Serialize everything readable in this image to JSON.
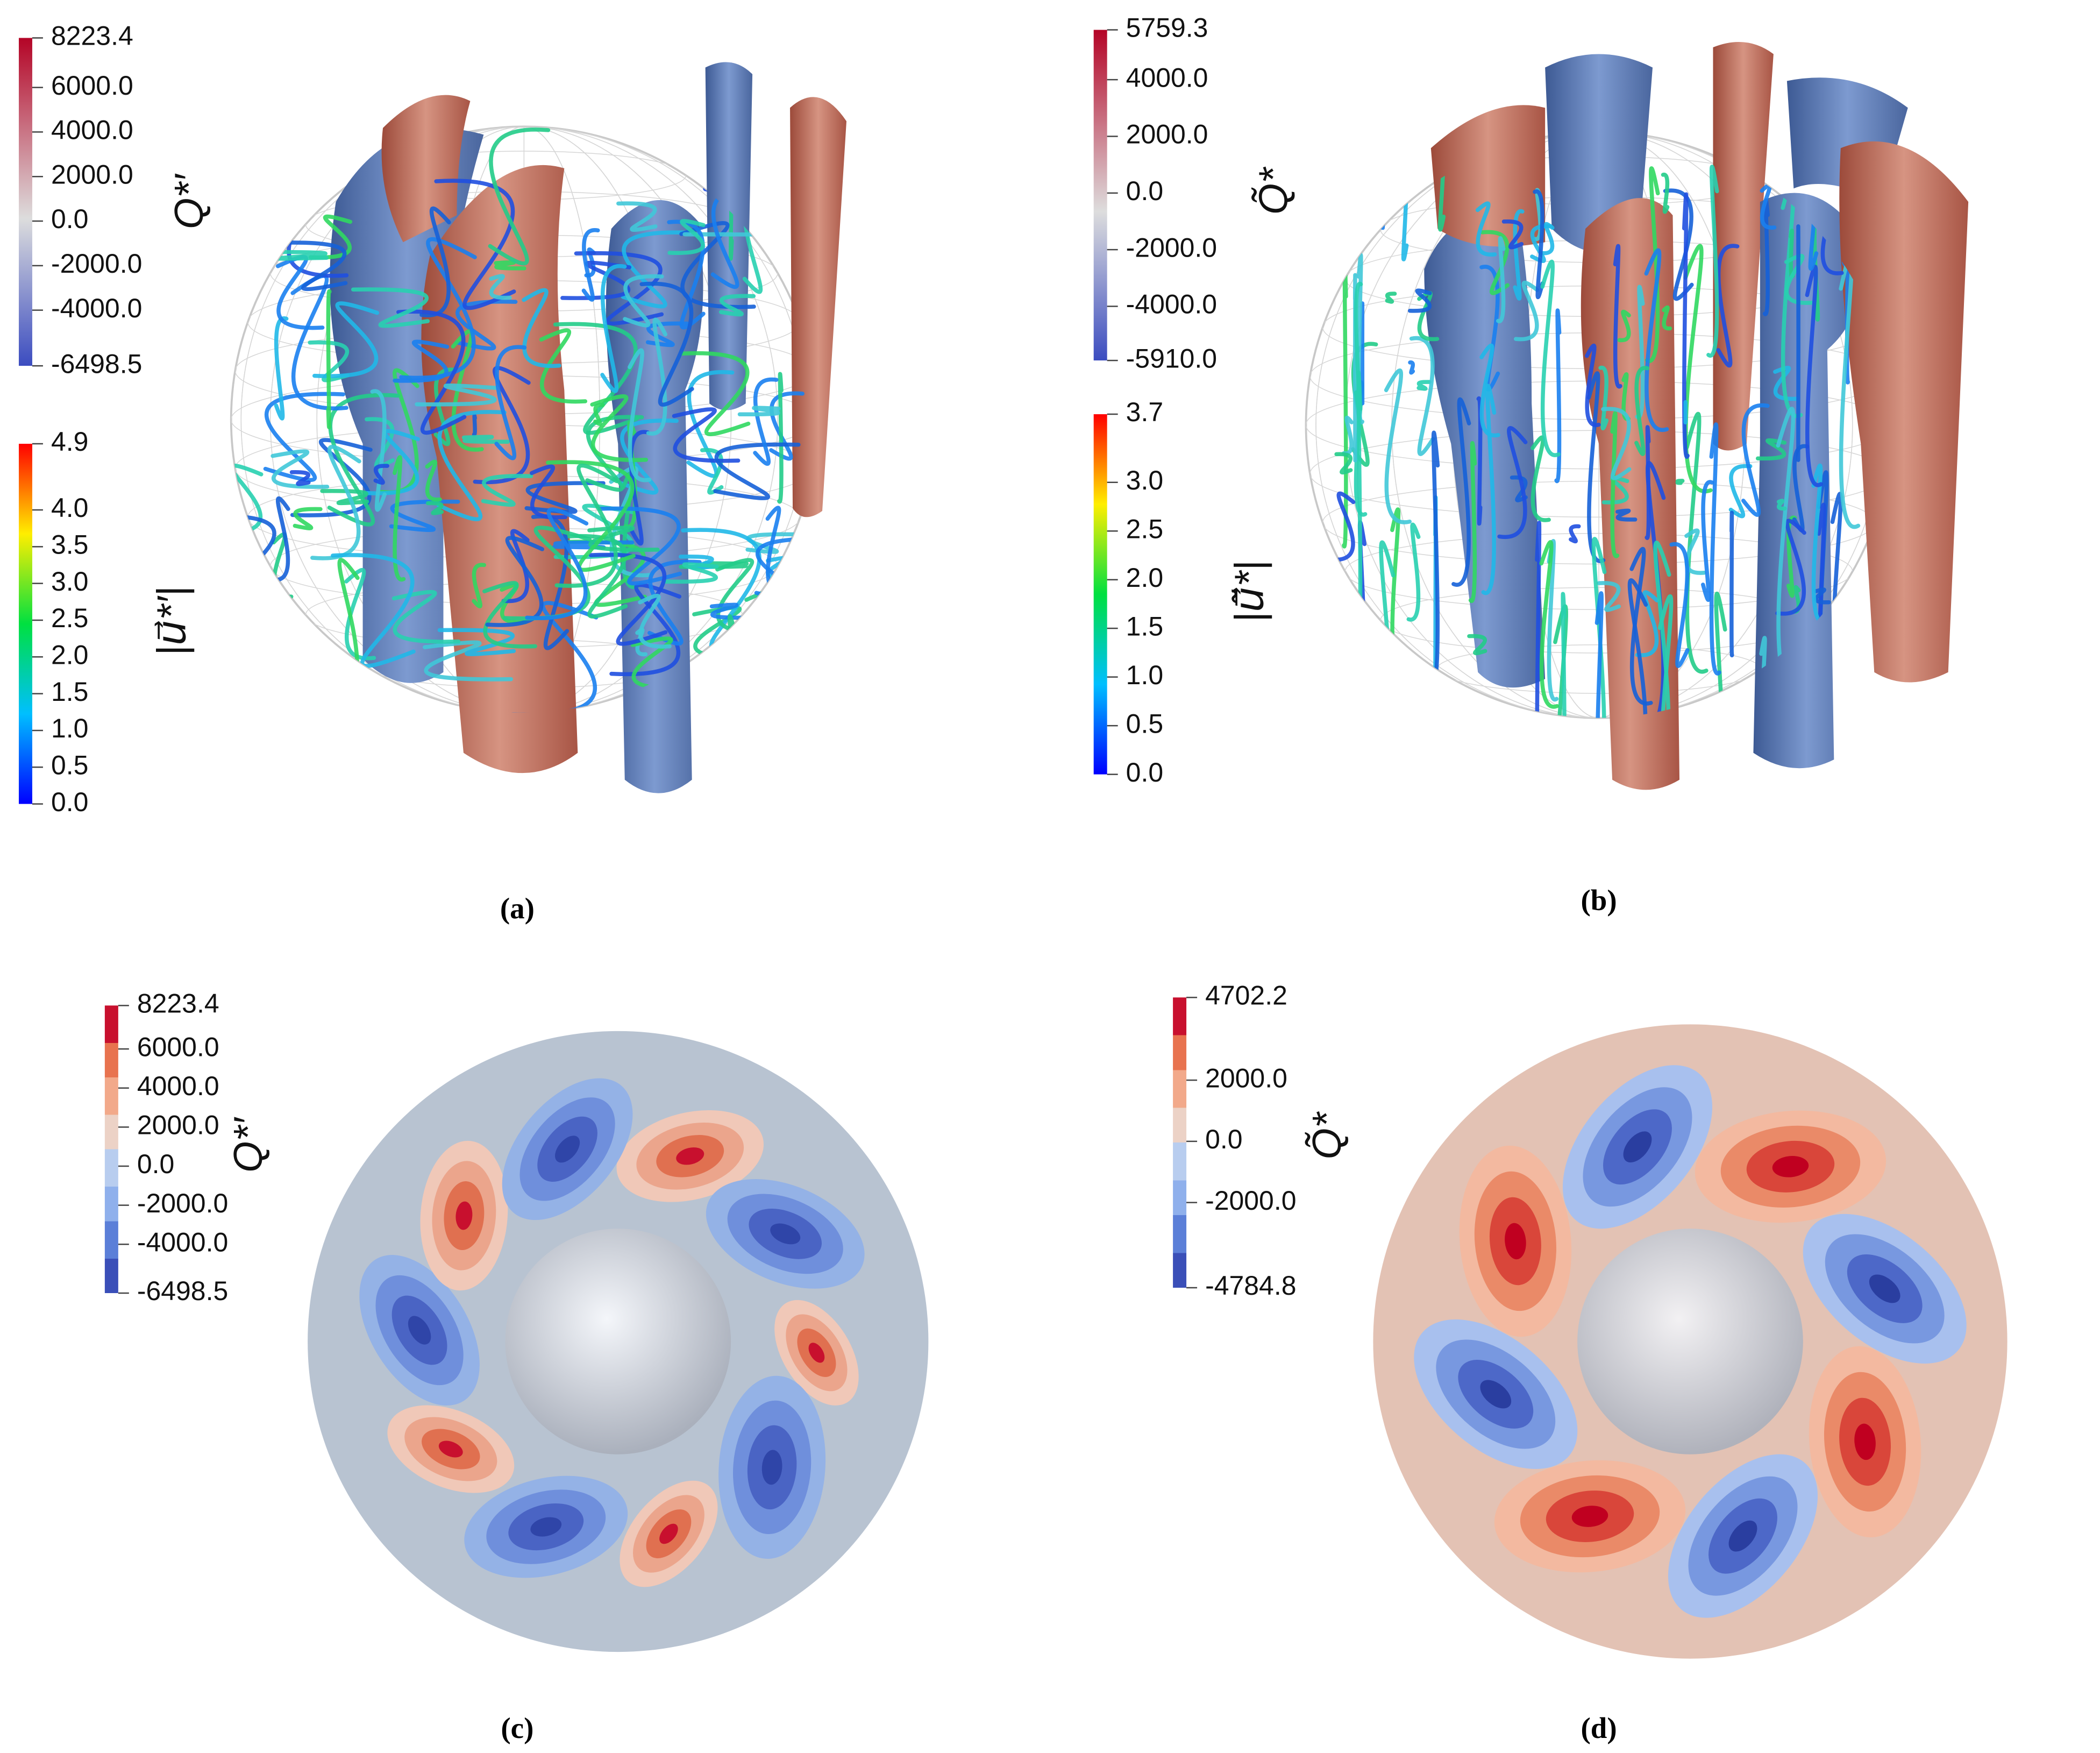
{
  "panels": [
    {
      "label": "(a)",
      "colorbars": [
        {
          "title": "Q*′",
          "range": [
            -6498.5,
            8223.4
          ],
          "ticks": [
            8223.4,
            {
              "value": 6000,
              "label": "6000.0"
            },
            {
              "value": 4000,
              "label": "4000.0"
            },
            {
              "value": 2000,
              "label": "2000.0"
            },
            {
              "value": 0,
              "label": "0.0"
            },
            {
              "value": -2000,
              "label": "-2000.0"
            },
            {
              "value": -4000,
              "label": "-4000.0"
            },
            -6498.5
          ]
        },
        {
          "title": "|u⃗*′|",
          "range": [
            0,
            4.9
          ],
          "ticks": [
            {
              "value": 0,
              "label": "0.0"
            },
            0.5,
            {
              "value": 1,
              "label": "1.0"
            },
            1.5,
            {
              "value": 2,
              "label": "2.0"
            },
            2.5,
            {
              "value": 3,
              "label": "3.0"
            },
            3.5,
            {
              "value": 4,
              "label": "4.0"
            },
            4.9
          ]
        }
      ]
    },
    {
      "label": "(b)",
      "colorbars": [
        {
          "title": "Q̃*",
          "range": [
            -5910,
            5759.3
          ],
          "ticks": [
            5759.3,
            {
              "value": 4000,
              "label": "4000.0"
            },
            {
              "value": 2000,
              "label": "2000.0"
            },
            {
              "value": 0,
              "label": "0.0"
            },
            {
              "value": -2000,
              "label": "-2000.0"
            },
            {
              "value": -4000,
              "label": "-4000.0"
            },
            {
              "value": -5910,
              "label": "-5910.0"
            }
          ]
        },
        {
          "title": "|ũ⃗*|",
          "range": [
            0,
            3.7
          ],
          "ticks": [
            {
              "value": 0,
              "label": "0.0"
            },
            0.5,
            {
              "value": 1,
              "label": "1.0"
            },
            1.5,
            {
              "value": 2,
              "label": "2.0"
            },
            2.5,
            {
              "value": 3,
              "label": "3.0"
            },
            3.7
          ]
        }
      ]
    },
    {
      "label": "(c)",
      "colorbars": [
        {
          "title": "Q*′",
          "range": [
            -6498.5,
            8223.4
          ],
          "ticks": [
            8223.4,
            {
              "value": 6000,
              "label": "6000.0"
            },
            {
              "value": 4000,
              "label": "4000.0"
            },
            {
              "value": 2000,
              "label": "2000.0"
            },
            {
              "value": 0,
              "label": "0.0"
            },
            {
              "value": -2000,
              "label": "-2000.0"
            },
            {
              "value": -4000,
              "label": "-4000.0"
            },
            -6498.5
          ]
        }
      ]
    },
    {
      "label": "(d)",
      "colorbars": [
        {
          "title": "Q̃*",
          "range": [
            -4784.8,
            4702.2
          ],
          "ticks": [
            4702.2,
            {
              "value": 2000,
              "label": "2000.0"
            },
            {
              "value": 0,
              "label": "0.0"
            },
            {
              "value": -2000,
              "label": "-2000.0"
            },
            -4784.8
          ]
        }
      ]
    }
  ]
}
